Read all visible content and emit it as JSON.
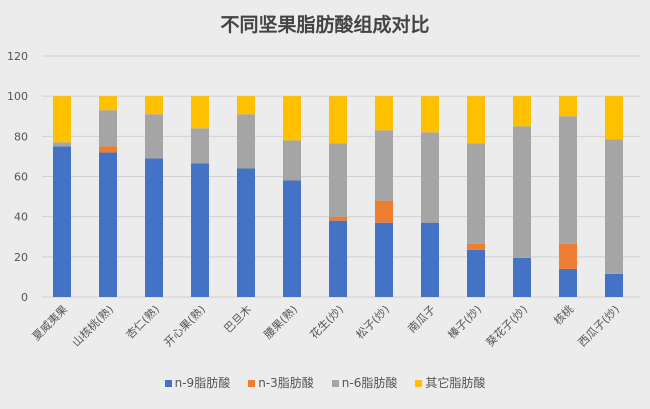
{
  "chart_data": {
    "type": "bar",
    "stacked": true,
    "title": "不同坚果脂肪酸组成对比",
    "xlabel": "",
    "ylabel": "",
    "ylim": [
      0,
      120
    ],
    "yticks": [
      0,
      20,
      40,
      60,
      80,
      100,
      120
    ],
    "grid": true,
    "legend_placement": "bottom",
    "categories": [
      "夏威夷果",
      "山核桃(熟)",
      "杏仁(熟)",
      "开心果(熟)",
      "巴旦木",
      "腰果(熟)",
      "花生(炒)",
      "松子(炒)",
      "南瓜子",
      "榛子(炒)",
      "葵花子(炒)",
      "核桃",
      "西瓜子(炒)"
    ],
    "series": [
      {
        "name": "n-9脂肪酸",
        "color": "#4472c4",
        "values": [
          75,
          72,
          69,
          66.5,
          64,
          58,
          38,
          37,
          37,
          23.5,
          19.5,
          14,
          11.5
        ]
      },
      {
        "name": "n-3脂肪酸",
        "color": "#ed7d31",
        "values": [
          0,
          3,
          0,
          0,
          0,
          0,
          2,
          11,
          0,
          3,
          0,
          12.5,
          0
        ]
      },
      {
        "name": "n-6脂肪酸",
        "color": "#a5a5a5",
        "values": [
          2,
          18,
          22,
          17.5,
          27,
          20,
          36.5,
          35,
          45,
          50,
          65.5,
          63.5,
          67
        ]
      },
      {
        "name": "其它脂肪酸",
        "color": "#ffc000",
        "values": [
          23,
          7,
          9,
          16,
          9,
          22,
          23.5,
          17,
          18,
          23.5,
          15,
          10,
          21.5
        ]
      }
    ]
  }
}
